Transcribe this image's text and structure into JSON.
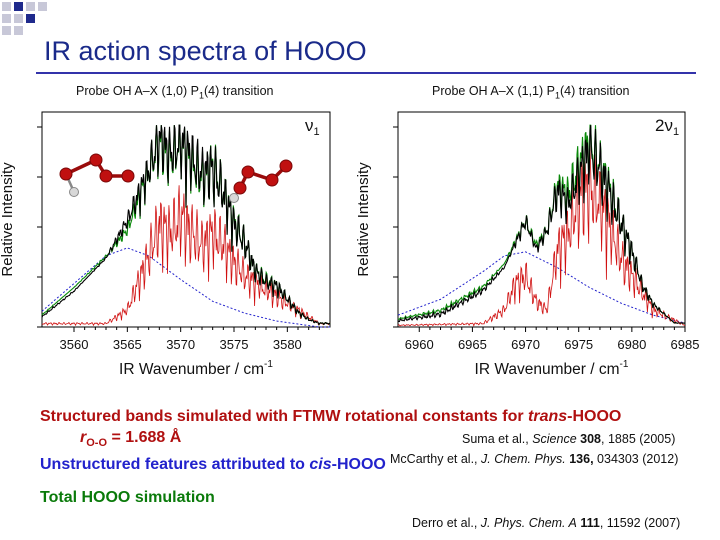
{
  "slide": {
    "title": "IR action spectra of HOOO",
    "colors": {
      "title": "#1a2a8a",
      "red_caption": "#b01010",
      "green_caption": "#0a7a0a"
    }
  },
  "chart_data": [
    {
      "type": "line",
      "caption": "Probe OH A–X (1,0) P1(4) transition",
      "caption_main": "Probe OH A–X (1,0) P",
      "caption_sub": "1",
      "caption_tail": "(4) transition",
      "band_label": "ν",
      "band_label_sub": "1",
      "xlabel": "IR Wavenumber / cm",
      "xlabel_sup": "-1",
      "ylabel": "Relative Intensity",
      "xlim": [
        3557,
        3584
      ],
      "x_ticks": [
        3560,
        3565,
        3570,
        3575,
        3580
      ],
      "x_tick_labels": [
        "3560",
        "3565",
        "3570",
        "3575",
        "3580"
      ],
      "ylim": [
        0,
        1
      ],
      "grid": false,
      "band_center": 3570.5,
      "series": [
        {
          "role": "experiment",
          "color": "#000000",
          "x": [
            3557,
            3560,
            3563,
            3565,
            3567,
            3568,
            3569,
            3570,
            3571,
            3572,
            3573,
            3574,
            3575,
            3576,
            3577,
            3578,
            3579,
            3580,
            3581,
            3582,
            3583
          ],
          "values": [
            0.05,
            0.18,
            0.35,
            0.55,
            0.82,
            1.0,
            0.92,
            0.98,
            0.9,
            0.82,
            0.85,
            0.72,
            0.55,
            0.45,
            0.3,
            0.24,
            0.22,
            0.15,
            0.08,
            0.04,
            0.02
          ]
        },
        {
          "role": "cis-HOOO",
          "color": "#2222cc",
          "x": [
            3557,
            3560,
            3563,
            3565,
            3567,
            3570,
            3573,
            3576,
            3579,
            3583
          ],
          "values": [
            0.08,
            0.22,
            0.36,
            0.4,
            0.36,
            0.24,
            0.13,
            0.07,
            0.03,
            0.0
          ]
        },
        {
          "role": "trans-HOOO",
          "color": "#d01010",
          "x": [
            3557,
            3563,
            3565,
            3567,
            3568,
            3569,
            3570,
            3571,
            3572,
            3573,
            3574,
            3575,
            3576,
            3577,
            3578,
            3580,
            3583
          ],
          "values": [
            0.02,
            0.02,
            0.1,
            0.42,
            0.6,
            0.55,
            0.65,
            0.56,
            0.48,
            0.55,
            0.48,
            0.38,
            0.3,
            0.26,
            0.22,
            0.14,
            0.02
          ]
        },
        {
          "role": "Total HOOO",
          "color": "#0a8a0a",
          "x": [
            3557,
            3560,
            3563,
            3565,
            3567,
            3568,
            3569,
            3570,
            3571,
            3572,
            3573,
            3574,
            3575,
            3576,
            3577,
            3578,
            3579,
            3580,
            3581,
            3582,
            3583
          ],
          "values": [
            0.06,
            0.2,
            0.36,
            0.5,
            0.82,
            0.98,
            0.9,
            0.98,
            0.88,
            0.8,
            0.86,
            0.72,
            0.56,
            0.45,
            0.3,
            0.25,
            0.22,
            0.15,
            0.08,
            0.04,
            0.02
          ]
        }
      ]
    },
    {
      "type": "line",
      "caption": "Probe OH A–X (1,1) P1(4) transition",
      "caption_main": "Probe OH A–X (1,1) P",
      "caption_sub": "1",
      "caption_tail": "(4) transition",
      "band_label": "2ν",
      "band_label_sub": "1",
      "xlabel": "IR Wavenumber / cm",
      "xlabel_sup": "-1",
      "ylabel": "Relative Intensity",
      "xlim": [
        6958,
        6985
      ],
      "x_ticks": [
        6960,
        6965,
        6970,
        6975,
        6980,
        6985
      ],
      "x_tick_labels": [
        "6960",
        "6965",
        "6970",
        "6975",
        "6980",
        "6985"
      ],
      "ylim": [
        0,
        1
      ],
      "grid": false,
      "band_center": 6975.5,
      "series": [
        {
          "role": "experiment",
          "color": "#000000",
          "x": [
            6958,
            6962,
            6966,
            6968,
            6970,
            6971,
            6972,
            6973,
            6974,
            6975,
            6976,
            6977,
            6978,
            6979,
            6980,
            6981,
            6982,
            6984
          ],
          "values": [
            0.03,
            0.06,
            0.18,
            0.3,
            0.55,
            0.4,
            0.5,
            0.72,
            0.65,
            0.8,
            0.95,
            0.85,
            0.7,
            0.55,
            0.4,
            0.22,
            0.12,
            0.02
          ]
        },
        {
          "role": "cis-HOOO",
          "color": "#2222cc",
          "x": [
            6958,
            6962,
            6966,
            6968,
            6970,
            6973,
            6976,
            6979,
            6982,
            6985
          ],
          "values": [
            0.06,
            0.14,
            0.28,
            0.36,
            0.38,
            0.3,
            0.2,
            0.12,
            0.06,
            0.02
          ]
        },
        {
          "role": "trans-HOOO",
          "color": "#d01010",
          "x": [
            6958,
            6966,
            6968,
            6969,
            6970,
            6971,
            6972,
            6973,
            6974,
            6975,
            6976,
            6977,
            6978,
            6979,
            6980,
            6982,
            6985
          ],
          "values": [
            0.01,
            0.02,
            0.1,
            0.25,
            0.3,
            0.15,
            0.1,
            0.45,
            0.55,
            0.75,
            0.82,
            0.72,
            0.58,
            0.4,
            0.3,
            0.1,
            0.01
          ]
        },
        {
          "role": "Total HOOO",
          "color": "#0a8a0a",
          "x": [
            6958,
            6962,
            6966,
            6968,
            6970,
            6971,
            6972,
            6973,
            6974,
            6975,
            6976,
            6977,
            6978,
            6979,
            6980,
            6981,
            6982,
            6984
          ],
          "values": [
            0.04,
            0.08,
            0.2,
            0.32,
            0.55,
            0.42,
            0.5,
            0.74,
            0.7,
            0.85,
            0.98,
            0.86,
            0.72,
            0.55,
            0.4,
            0.22,
            0.12,
            0.02
          ]
        }
      ]
    }
  ],
  "captions": {
    "structured_prefix": "Structured bands simulated with FTMW rotational constants for ",
    "structured_italic": "trans",
    "structured_suffix": "-HOOO",
    "roo_r": "r",
    "roo_sub": "O-O",
    "roo_value": " = 1.688 Å",
    "unstructured_prefix": "Unstructured features attributed to ",
    "unstructured_italic": "cis",
    "unstructured_suffix": "-HOOO",
    "total": "Total HOOO simulation"
  },
  "references": [
    {
      "authors": "Suma et al., ",
      "journal": "Science",
      "volume": "308",
      "rest": ", 1885 (2005)"
    },
    {
      "authors": "McCarthy et al., ",
      "journal": "J. Chem. Phys.",
      "volume": "136,",
      "rest": " 034303 (2012)"
    },
    {
      "authors": "Derro et al., ",
      "journal": "J. Phys. Chem. A",
      "volume": "111",
      "rest": ", 11592 (2007)"
    }
  ]
}
